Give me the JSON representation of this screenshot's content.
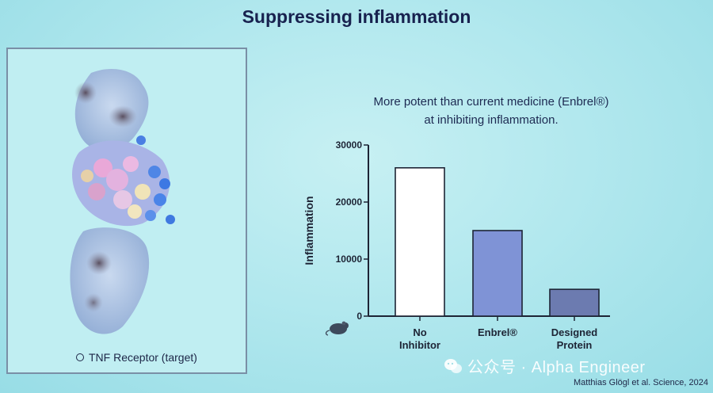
{
  "slide": {
    "title": "Suppressing inflammation",
    "figure_caption": "TNF Receptor (target)",
    "citation": "Matthias Glögl et al. Science, 2024",
    "watermark": "公众号 · Alpha Engineer"
  },
  "chart_data": {
    "type": "bar",
    "title_lines": [
      "More potent than current medicine (Enbrel®)",
      "at inhibiting inflammation."
    ],
    "ylabel": "Inflammation",
    "xlabel": "",
    "ylim": [
      0,
      30000
    ],
    "yticks": [
      0,
      10000,
      20000,
      30000
    ],
    "categories": [
      [
        "No",
        "Inhibitor"
      ],
      [
        "Enbrel®"
      ],
      [
        "Designed",
        "Protein"
      ]
    ],
    "values": [
      26000,
      15000,
      4700
    ],
    "bar_colors": [
      "#ffffff",
      "#7f93d6",
      "#6c7bb0"
    ],
    "grid": false,
    "legend": "none"
  },
  "icons": {
    "mouse": "mouse-icon",
    "wechat": "wechat-icon"
  }
}
